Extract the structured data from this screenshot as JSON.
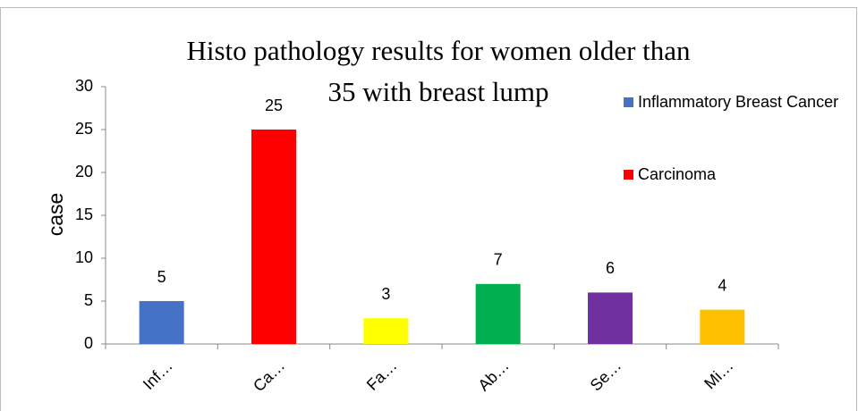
{
  "chart_data": {
    "type": "bar",
    "title": "Histo pathology results for women older than 35 with breast lump",
    "y_label": "case",
    "categories": [
      "Inf…",
      "Ca…",
      "Fa…",
      "Ab…",
      "Se…",
      "Mi…"
    ],
    "values": [
      5,
      25,
      3,
      7,
      6,
      4
    ],
    "colors": [
      "#4472c4",
      "#ff0000",
      "#ffff00",
      "#00b050",
      "#7030a0",
      "#ffc000"
    ],
    "ylim": [
      0,
      30
    ],
    "yticks": [
      0,
      5,
      10,
      15,
      20,
      25,
      30
    ],
    "grid": false,
    "legend": [
      {
        "name": "Inflammatory Breast Cancer",
        "color": "#4472c4"
      },
      {
        "name": "Carcinoma",
        "color": "#ff0000"
      }
    ]
  }
}
